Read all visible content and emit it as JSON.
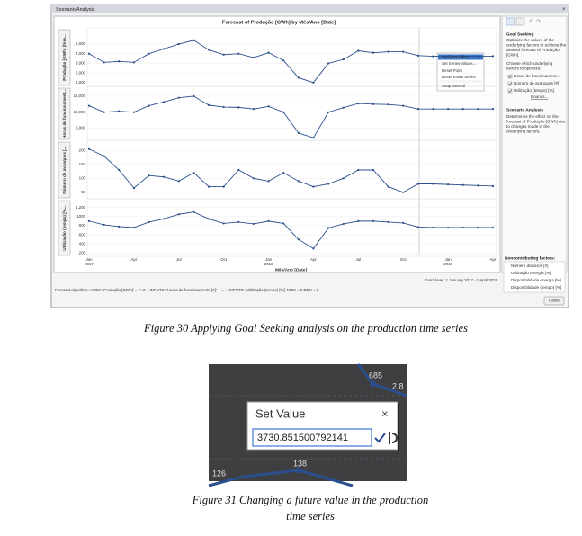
{
  "window_title": "Scenario Analysis",
  "chart_data": [
    {
      "type": "line",
      "title": "Forecast of Produção [GWh] by Mês/Ano [Date]",
      "y_label": "Produção [GWh] (fore...",
      "color": "#2b4f8c",
      "ylim": [
        700,
        6500
      ],
      "yticks": [
        {
          "value": 1000,
          "label": "1,000"
        },
        {
          "value": 2000,
          "label": "2,000"
        },
        {
          "value": 3000,
          "label": "3,000"
        },
        {
          "value": 4000,
          "label": "4,000"
        },
        {
          "value": 5000,
          "label": "5,000"
        }
      ],
      "values": [
        4000,
        3100,
        3200,
        3100,
        4000,
        4500,
        5000,
        5400,
        4400,
        3900,
        4000,
        3600,
        4100,
        3300,
        1500,
        1000,
        3000,
        3400,
        4300,
        4100,
        4200,
        4200,
        3800,
        3730,
        3750,
        3750,
        3750,
        3750
      ]
    },
    {
      "type": "line",
      "y_label": "Horas de funcionament...",
      "color": "#2b4f8c",
      "ylim": [
        1500,
        17500
      ],
      "yticks": [
        {
          "value": 5000,
          "label": "5,000"
        },
        {
          "value": 10000,
          "label": "10,000"
        },
        {
          "value": 15000,
          "label": "15,000"
        }
      ],
      "values": [
        12000,
        10000,
        10300,
        10000,
        12000,
        13200,
        14500,
        15000,
        12200,
        11600,
        11500,
        11000,
        11800,
        10000,
        3500,
        2000,
        10000,
        11400,
        12700,
        12500,
        12400,
        12000,
        11000,
        11000,
        11000,
        11000,
        11000,
        11000
      ]
    },
    {
      "type": "line",
      "y_label": "Número de avanques [...",
      "color": "#2b4f8c",
      "ylim": [
        30,
        230
      ],
      "yticks": [
        50,
        100,
        150,
        200
      ],
      "values": [
        205,
        180,
        130,
        65,
        110,
        105,
        90,
        120,
        70,
        70,
        130,
        100,
        90,
        120,
        90,
        70,
        80,
        100,
        130,
        130,
        70,
        50,
        80,
        80,
        78,
        76,
        74,
        72
      ]
    },
    {
      "type": "line",
      "y_label": "Utilização (tempo) [%...",
      "color": "#2b4f8c",
      "x_label": "Mês/Ano [Date]",
      "ylim": [
        150,
        1350
      ],
      "yticks": [
        200,
        400,
        600,
        800,
        1000,
        {
          "value": 1200,
          "label": "1,200"
        }
      ],
      "categories": [
        "Jan 2017",
        null,
        null,
        "Apr",
        null,
        null,
        "Jul",
        null,
        null,
        "Oct",
        null,
        null,
        "Jan 2018",
        null,
        null,
        "Apr",
        null,
        null,
        "Jul",
        null,
        null,
        "Oct",
        null,
        null,
        "Jan 2019",
        null,
        null,
        "Apr"
      ],
      "values": [
        900,
        820,
        780,
        760,
        880,
        950,
        1050,
        1100,
        950,
        850,
        880,
        840,
        900,
        850,
        500,
        300,
        750,
        840,
        900,
        900,
        880,
        860,
        770,
        760,
        760,
        760,
        760,
        760
      ]
    }
  ],
  "context_menu": [
    "Set Point Value...",
    "Set Series Values...",
    "Reset Point",
    "Reset Entire Series",
    "Snap Interval"
  ],
  "zoom_level": "Zoom level:   1 January 2017 - 1 April 2019",
  "algorithm": "Forecast algorithm:   ARIMA  'Produção [GWh]' = P=2  +  INPUTS:  'Horas de funcionamento [#]'  +  ...  +  INPUTS:  'Utilização (tempo) [%]' NUM = 2  DEN = 1",
  "goal_seeking": {
    "heading": "Goal Seeking",
    "desc": [
      "Optimize the values of the",
      "underlying factors to achieve the",
      "desired forecast of Produção",
      "[GWh]."
    ],
    "choose": [
      "Choose which underlying",
      "factors to optimize:"
    ],
    "factors": [
      "Horas de funcionament...",
      "Número de avanques [#]",
      "Utilização (tempo) [%]"
    ],
    "bounds": "Bounds..."
  },
  "scenario_analysis": {
    "heading": "Scenario Analysis",
    "desc": [
      "Determines the effect on the",
      "forecast of Produção [GWh] due",
      "to changes made in the",
      "underlying factors."
    ]
  },
  "noncontributing": {
    "heading": "Noncontributing factors:",
    "factors": [
      "Número disparos [#]",
      "Utilização energia [%]",
      "Disponibilidade energia [%]",
      "Disponibilidade (tempo) [%]"
    ]
  },
  "close": "Close",
  "caption_30": "Figure 30 Applying Goal Seeking analysis on the production time series",
  "figure_31": {
    "dialog_title": "Set Value",
    "dialog_close": "×",
    "input": "3730.851500792141",
    "background_labels": [
      "685",
      "2,8",
      "126",
      "138"
    ]
  },
  "caption_31": [
    "Figure 31 Changing a future value in the production",
    "time series"
  ]
}
